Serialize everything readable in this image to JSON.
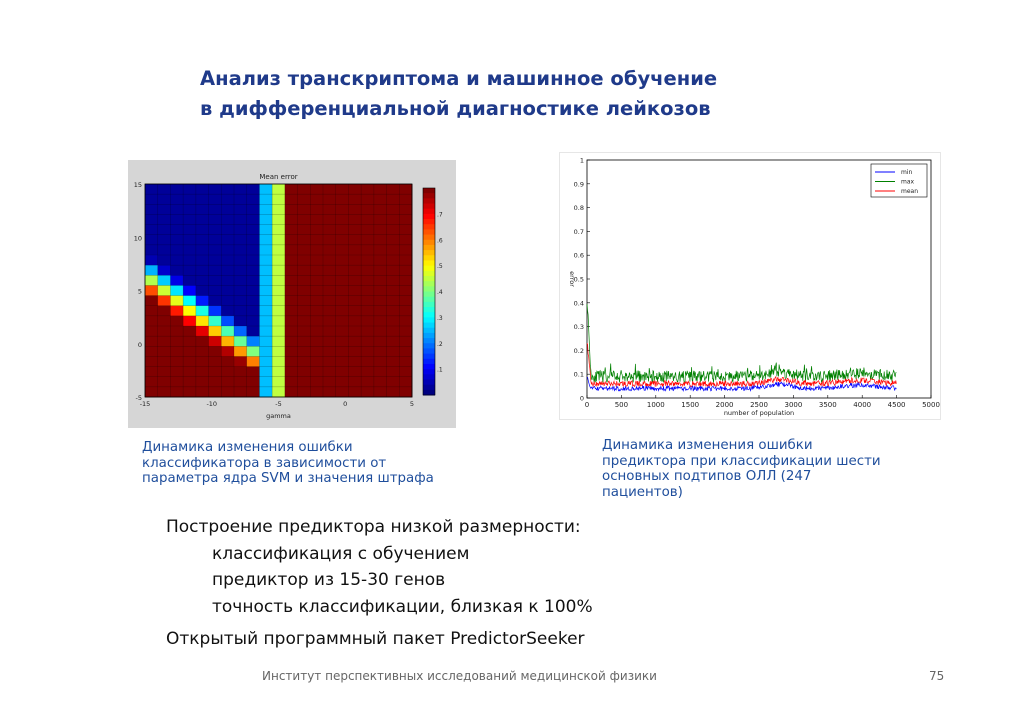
{
  "slide": {
    "title_line1": "Анализ транскриптома и машинное обучение",
    "title_line2": "в дифференциальной диагностике лейкозов",
    "caption_left": [
      "Динамика изменения ошибки",
      "классификатора в зависимости от",
      "параметра ядра SVM и значения штрафа"
    ],
    "caption_right": [
      "Динамика изменения ошибки",
      "предиктора при классификации шести",
      "основных подтипов ОЛЛ (247",
      "пациентов)"
    ],
    "bullets": {
      "heading1": "Построение предиктора низкой размерности:",
      "items": [
        "классификация с обучением",
        "предиктор из 15-30 генов",
        "точность классификации, близкая к 100%"
      ],
      "heading2": "Открытый программный пакет PredictorSeeker"
    },
    "footer": "Институт перспективных исследований медицинской физики",
    "page_number": "75"
  },
  "chart_data": [
    {
      "type": "heatmap",
      "title": "Mean error",
      "xlabel": "gamma",
      "ylabel": "",
      "x_ticks": [
        "-15",
        "-10",
        "-5",
        "0",
        "5"
      ],
      "y_ticks": [
        "15",
        "10",
        "5",
        "0",
        "-5"
      ],
      "colorbar_ticks": [
        "0.7",
        "0.6",
        "0.5",
        "0.4",
        "0.3",
        "0.2",
        "0.1"
      ],
      "colormap": "jet",
      "grid": true
    },
    {
      "type": "line",
      "xlabel": "number of population",
      "ylabel": "error",
      "xlim": [
        0,
        5000
      ],
      "ylim": [
        0,
        1
      ],
      "x_ticks": [
        "0",
        "500",
        "1000",
        "1500",
        "2000",
        "2500",
        "3000",
        "3500",
        "4000",
        "4500",
        "5000"
      ],
      "y_ticks": [
        "1",
        "0.9",
        "0.8",
        "0.7",
        "0.6",
        "0.5",
        "0.4",
        "0.3",
        "0.2",
        "0.1",
        "0"
      ],
      "legend_position": "top-right",
      "series": [
        {
          "name": "min",
          "color": "#0000ff",
          "approx_level": 0.04
        },
        {
          "name": "max",
          "color": "#008000",
          "approx_level": 0.09
        },
        {
          "name": "mean",
          "color": "#ff0000",
          "approx_level": 0.06
        }
      ]
    }
  ]
}
